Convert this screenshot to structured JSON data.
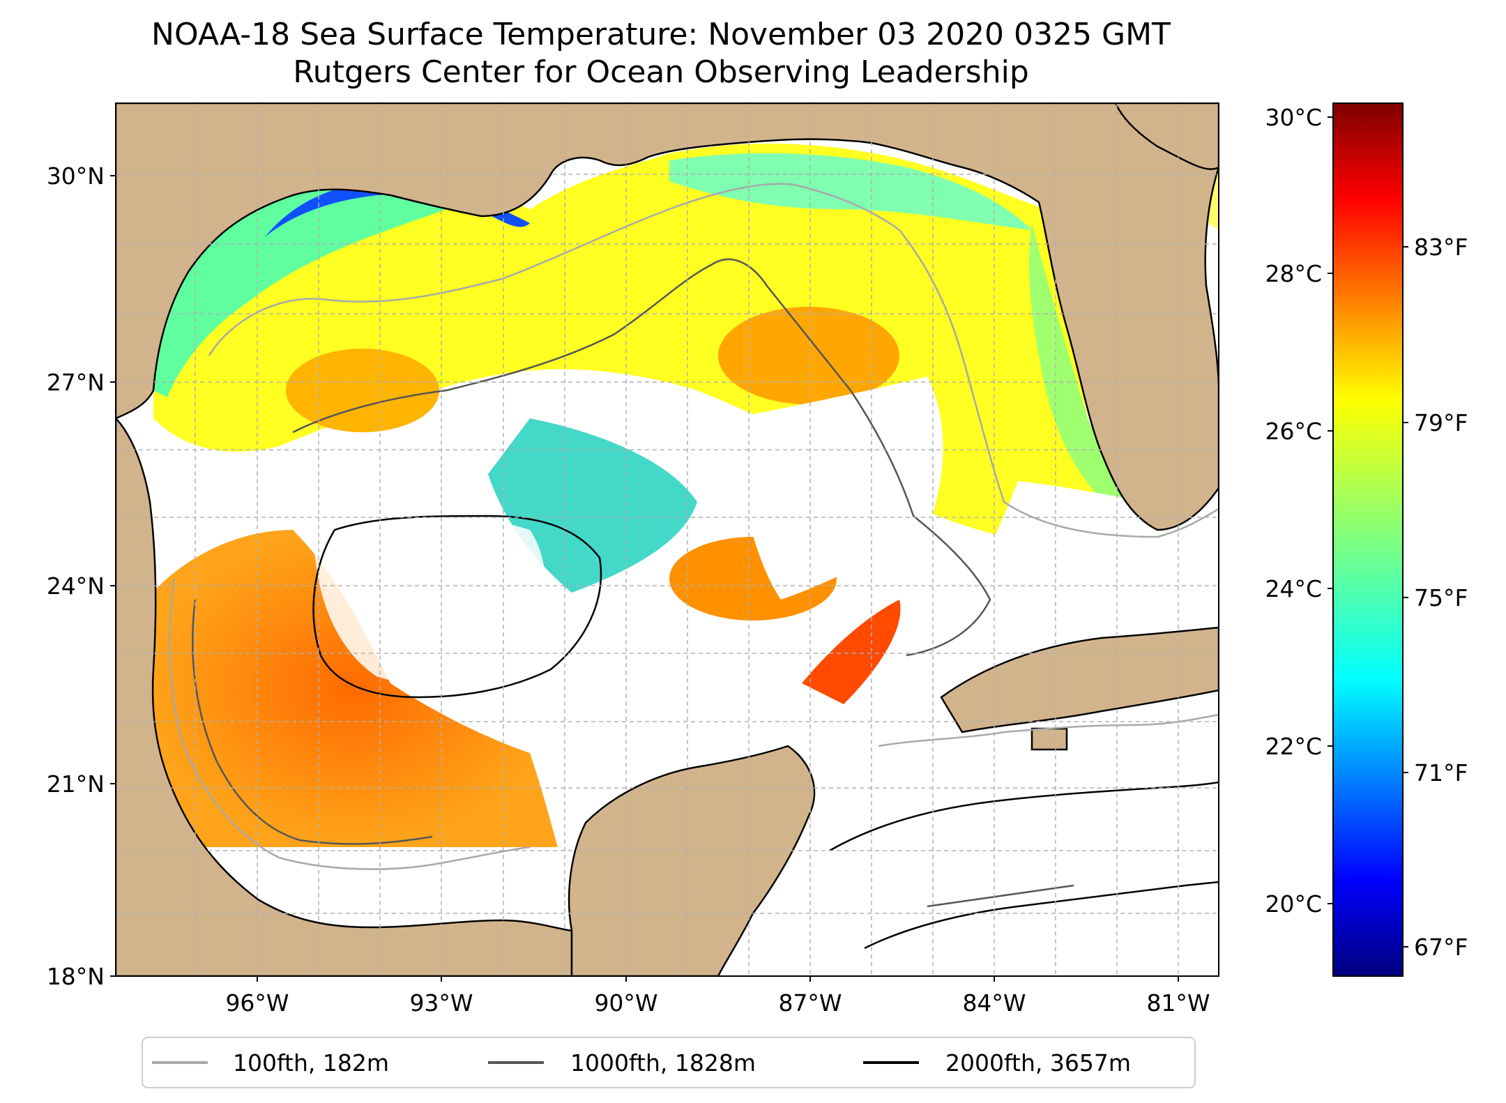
{
  "title": {
    "line1": "NOAA-18 Sea Surface Temperature: November 03 2020 0325 GMT",
    "line2": "Rutgers Center for Ocean Observing Leadership"
  },
  "map": {
    "lat_ticks": [
      "30°N",
      "27°N",
      "24°N",
      "21°N",
      "18°N"
    ],
    "lon_ticks": [
      "96°W",
      "93°W",
      "90°W",
      "87°W",
      "84°W",
      "81°W"
    ],
    "land_color": "#d2b48c",
    "no_data_color": "#ffffff",
    "gridlines": true
  },
  "colorbar": {
    "colormap": "jet",
    "celsius_ticks": [
      "30°C",
      "28°C",
      "26°C",
      "24°C",
      "22°C",
      "20°C"
    ],
    "fahrenheit_ticks": [
      "83°F",
      "79°F",
      "75°F",
      "71°F",
      "67°F"
    ],
    "colors": [
      "#00007f",
      "#0000ff",
      "#007fff",
      "#00ffff",
      "#7fff7f",
      "#ffff00",
      "#ff7f00",
      "#ff0000",
      "#7f0000"
    ]
  },
  "legend": {
    "items": [
      {
        "label": "100fth, 182m",
        "color": "#a8a8a8"
      },
      {
        "label": "1000fth, 1828m",
        "color": "#555555"
      },
      {
        "label": "2000fth, 3657m",
        "color": "#000000"
      }
    ]
  }
}
